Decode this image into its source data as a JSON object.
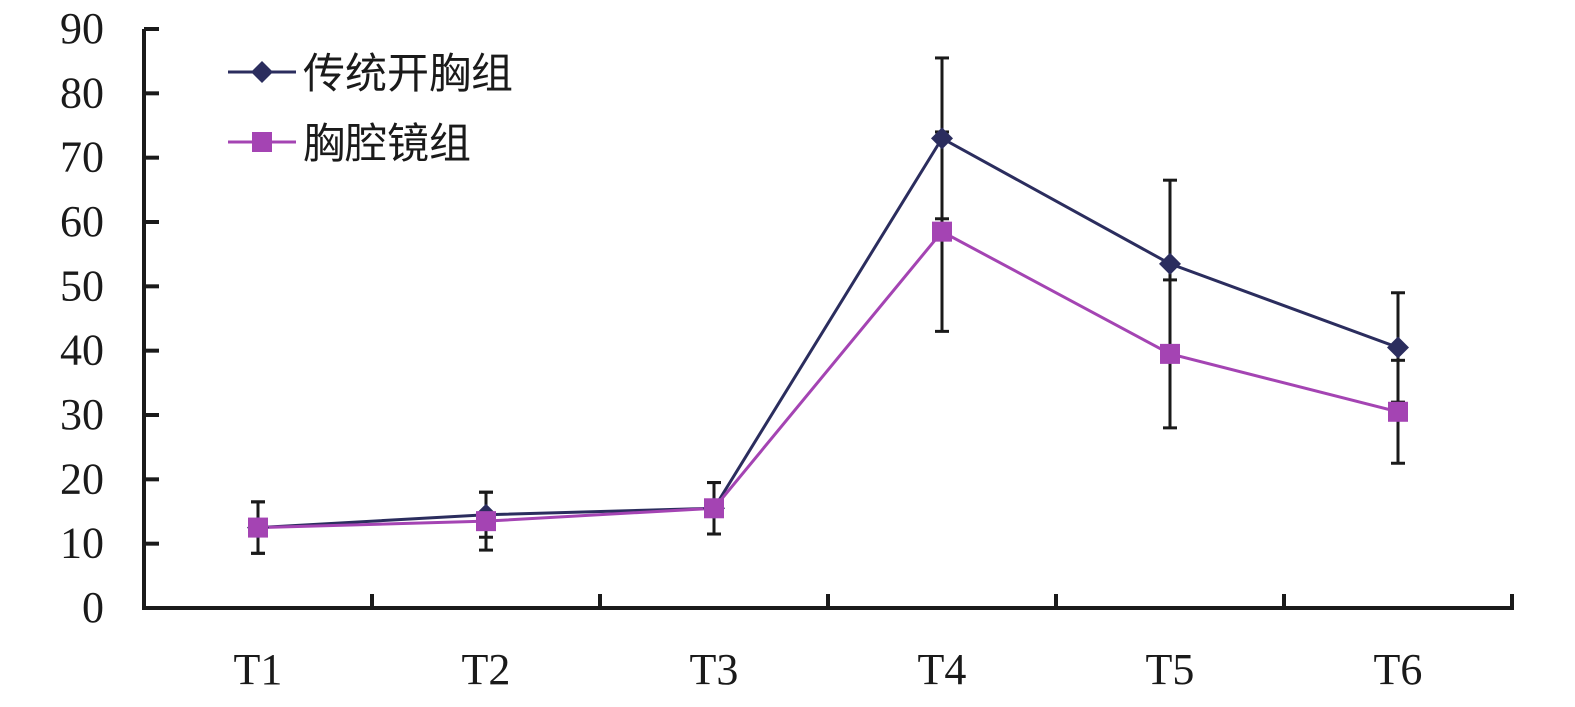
{
  "chart_data": {
    "type": "line",
    "categories": [
      "T1",
      "T2",
      "T3",
      "T4",
      "T5",
      "T6"
    ],
    "ylim": [
      0,
      90
    ],
    "yticks": [
      0,
      10,
      20,
      30,
      40,
      50,
      60,
      70,
      80,
      90
    ],
    "grid": false,
    "legend_position": "top-left",
    "series": [
      {
        "name": "传统开胸组",
        "values": [
          12.5,
          14.5,
          15.5,
          73,
          53.5,
          40.5
        ],
        "error": [
          4,
          3.5,
          4,
          12.5,
          13,
          8.5
        ],
        "color": "#2b2d5e",
        "marker": "diamond"
      },
      {
        "name": "胸腔镜组",
        "values": [
          12.5,
          13.5,
          15.5,
          58.5,
          39.5,
          30.5
        ],
        "error": [
          4,
          4.5,
          4,
          15.5,
          11.5,
          8
        ],
        "color": "#a444b3",
        "marker": "square"
      }
    ]
  }
}
